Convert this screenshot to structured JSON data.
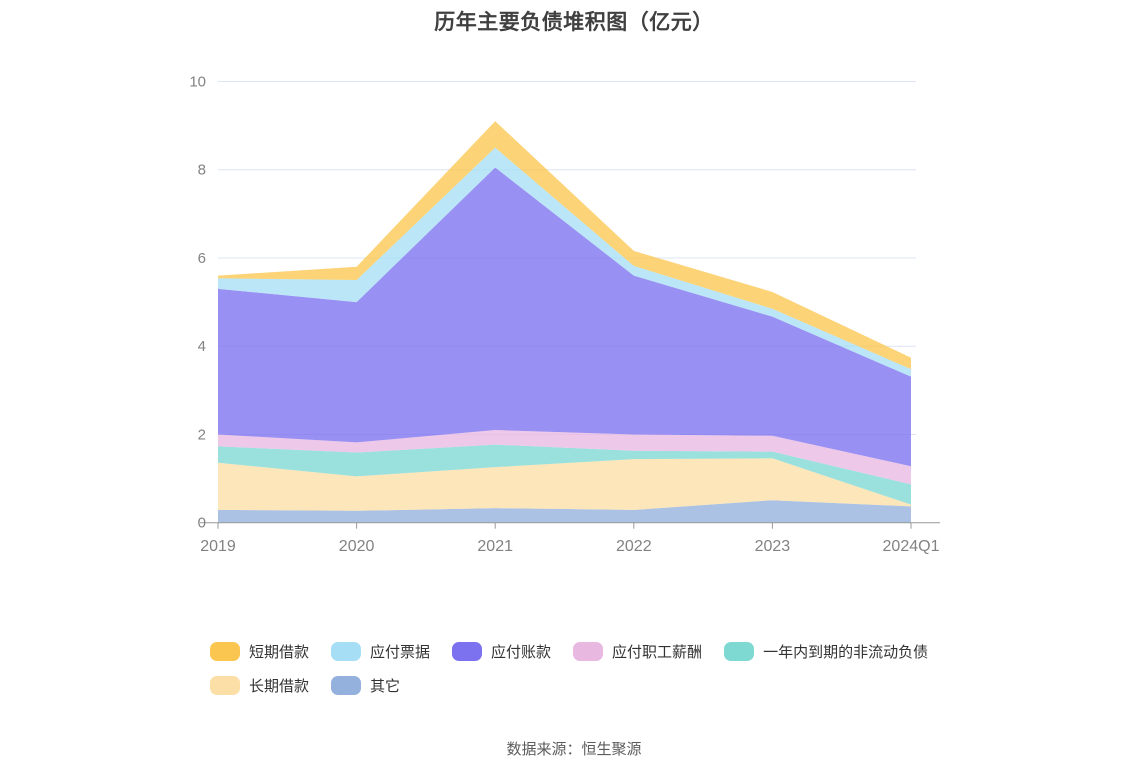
{
  "page": {
    "source": "数据来源：恒生聚源"
  },
  "chart_data": {
    "type": "area",
    "stacked": true,
    "title": "历年主要负债堆积图（亿元）",
    "categories": [
      "2019",
      "2020",
      "2021",
      "2022",
      "2023",
      "2024Q1"
    ],
    "xlabel": "",
    "ylabel": "",
    "ylim": [
      0,
      10
    ],
    "yticks": [
      0,
      2,
      4,
      6,
      8,
      10
    ],
    "grid": true,
    "legend_position": "bottom-left",
    "stack_order": "last series is bottom of stack, first series is top",
    "series": [
      {
        "name": "短期借款",
        "color": "#FBC64F",
        "values": [
          0.06,
          0.3,
          0.6,
          0.34,
          0.38,
          0.26
        ]
      },
      {
        "name": "应付票据",
        "color": "#A6DFF5",
        "values": [
          0.24,
          0.5,
          0.45,
          0.22,
          0.18,
          0.17
        ]
      },
      {
        "name": "应付账款",
        "color": "#7C71EF",
        "values": [
          3.3,
          3.18,
          5.95,
          3.6,
          2.7,
          2.03
        ]
      },
      {
        "name": "应付职工薪酬",
        "color": "#E9B8E1",
        "values": [
          0.27,
          0.23,
          0.33,
          0.37,
          0.36,
          0.41
        ]
      },
      {
        "name": "一年内到期的非流动负债",
        "color": "#7ED9D3",
        "values": [
          0.37,
          0.54,
          0.51,
          0.19,
          0.15,
          0.46
        ]
      },
      {
        "name": "长期借款",
        "color": "#FBDFA6",
        "values": [
          1.07,
          0.78,
          0.93,
          1.15,
          0.95,
          0.04
        ]
      },
      {
        "name": "其它",
        "color": "#93B1DC",
        "values": [
          0.29,
          0.27,
          0.33,
          0.29,
          0.51,
          0.37
        ]
      }
    ],
    "style": {
      "grid_color": "#DDE4F3",
      "axis_color": "#999999",
      "tick_label_color": "#828282",
      "area_opacity": 0.78
    }
  }
}
